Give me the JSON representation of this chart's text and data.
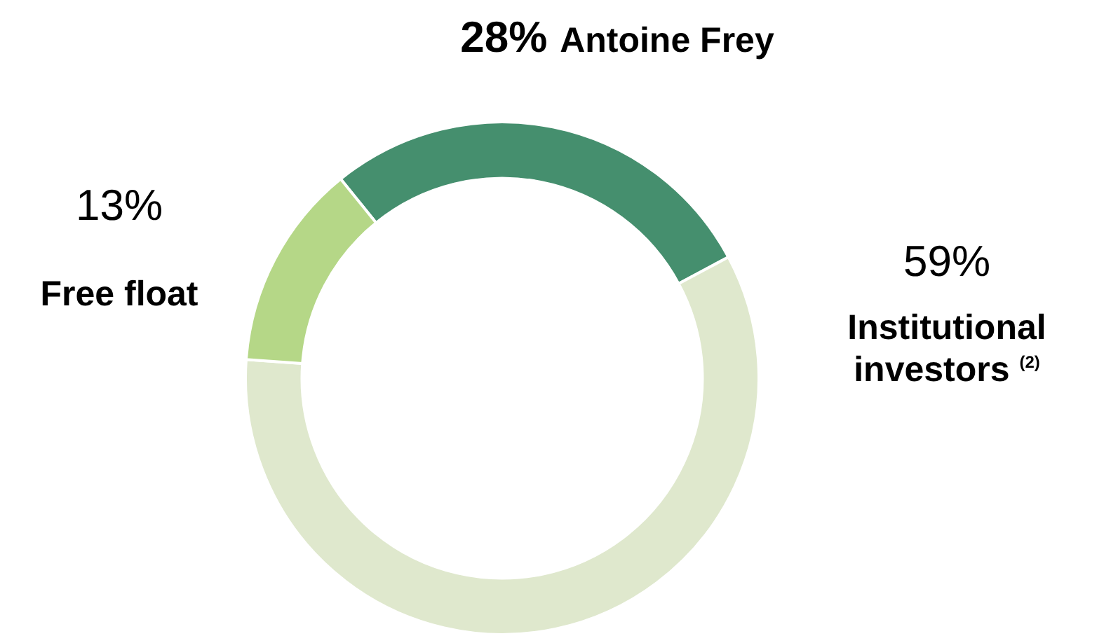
{
  "chart_data": {
    "type": "donut",
    "categories": [
      "Antoine Frey",
      "Institutional investors $^{(2)}$",
      "Free float"
    ],
    "values": [
      28,
      59,
      13
    ],
    "value_labels": [
      "28%",
      "59%",
      "13%"
    ],
    "colors": [
      "#458f6e",
      "#dfe8cd",
      "#b5d787"
    ]
  }
}
